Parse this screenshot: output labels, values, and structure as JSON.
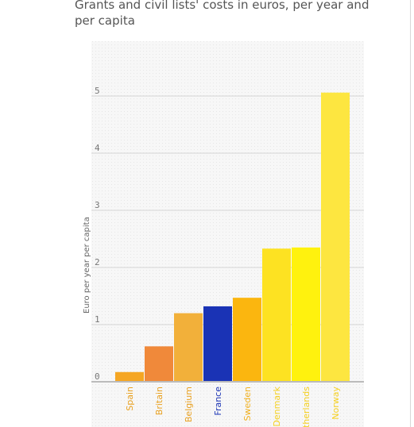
{
  "chart_data": {
    "type": "bar",
    "title": "Grants and civil lists' costs in euros, per year and per capita",
    "ylabel": "Euro per year per capita",
    "xlabel": "",
    "ylim": [
      0,
      5.5
    ],
    "yticks": [
      0,
      1,
      2,
      3,
      4,
      5
    ],
    "grid": true,
    "categories": [
      "Spain",
      "Britain",
      "Belgium",
      "France",
      "Sweden",
      "Denmark",
      "Netherlands",
      "Norway"
    ],
    "category_labels_visible": [
      "Spain",
      "Britain",
      "Belgium",
      "France",
      "Sweden",
      "Denmark",
      "therlands",
      "Norway"
    ],
    "values": [
      0.17,
      0.62,
      1.2,
      1.32,
      1.47,
      2.33,
      2.35,
      5.06
    ],
    "colors": [
      "#f5a623",
      "#f0893a",
      "#f2b03a",
      "#1a33b5",
      "#fbb60f",
      "#fde222",
      "#fff20e",
      "#fde640"
    ],
    "label_colors": [
      "#e8a020",
      "#e8a020",
      "#e8a020",
      "#1a33b5",
      "#f0b020",
      "#f5d020",
      "#f5d020",
      "#f5d020"
    ]
  }
}
